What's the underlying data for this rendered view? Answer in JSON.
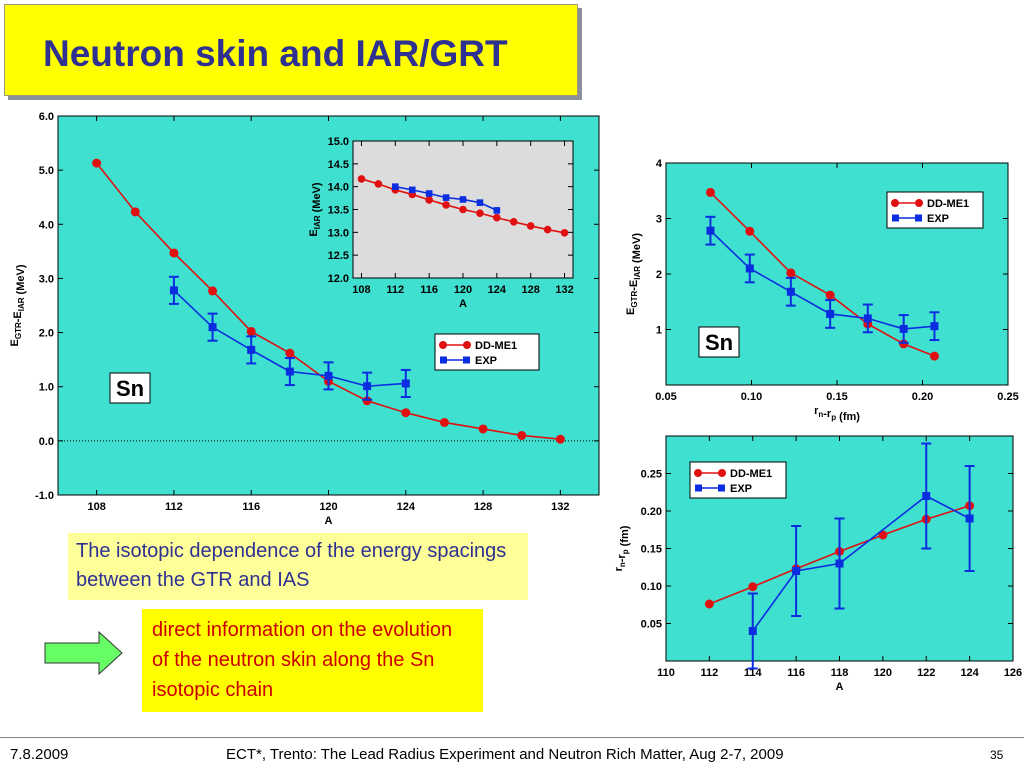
{
  "slide": {
    "title": "Neutron skin and IAR/GRT",
    "note_isotopic": "The isotopic dependence of the energy spacings between the GTR and IAS",
    "note_direct": "direct information on the evolution of the neutron skin along the Sn isotopic chain",
    "footer_date": "7.8.2009",
    "footer_conference": "ECT*, Trento: The Lead Radius Experiment and Neutron Rich Matter, Aug 2-7, 2009",
    "page_number": "35"
  },
  "colors": {
    "plot_bg": "#40e0d0",
    "inset_bg": "#dcdcdc",
    "model": "#e01010",
    "exp": "#0a2de0",
    "title_bg": "#ffff00",
    "title_text": "#2e3192"
  },
  "chart_data": [
    {
      "id": "main",
      "type": "line",
      "xlabel": "A",
      "ylabel": "E_GTR-E_IAR (MeV)",
      "xlim": [
        106,
        134
      ],
      "ylim": [
        -1.0,
        6.0
      ],
      "xticks": [
        108,
        112,
        116,
        120,
        124,
        128,
        132
      ],
      "yticks": [
        "-1.0",
        "0.0",
        "1.0",
        "2.0",
        "3.0",
        "4.0",
        "5.0",
        "6.0"
      ],
      "annotation": "Sn",
      "legend_position": "center-right",
      "zero_line": true,
      "series": [
        {
          "name": "DD-ME1",
          "x": [
            108,
            110,
            112,
            114,
            116,
            118,
            120,
            122,
            124,
            126,
            128,
            130,
            132
          ],
          "y": [
            5.13,
            4.23,
            3.47,
            2.77,
            2.02,
            1.62,
            1.1,
            0.74,
            0.52,
            0.34,
            0.22,
            0.1,
            0.03
          ]
        },
        {
          "name": "EXP",
          "x": [
            112,
            114,
            116,
            118,
            120,
            122,
            124
          ],
          "y": [
            2.78,
            2.1,
            1.68,
            1.28,
            1.2,
            1.01,
            1.06
          ],
          "err": [
            0.25,
            0.25,
            0.25,
            0.25,
            0.25,
            0.25,
            0.25
          ]
        }
      ]
    },
    {
      "id": "inset",
      "type": "line",
      "xlabel": "A",
      "ylabel": "E_IAR (MeV)",
      "xlim": [
        107,
        133
      ],
      "ylim": [
        12.0,
        15.0
      ],
      "xticks": [
        108,
        112,
        116,
        120,
        124,
        128,
        132
      ],
      "yticks": [
        "12.0",
        "12.5",
        "13.0",
        "13.5",
        "14.0",
        "14.5",
        "15.0"
      ],
      "series": [
        {
          "name": "DD-ME1",
          "x": [
            108,
            110,
            112,
            114,
            116,
            118,
            120,
            122,
            124,
            126,
            128,
            130,
            132
          ],
          "y": [
            14.17,
            14.06,
            13.93,
            13.83,
            13.71,
            13.6,
            13.5,
            13.42,
            13.32,
            13.23,
            13.14,
            13.06,
            12.99
          ]
        },
        {
          "name": "EXP",
          "x": [
            112,
            114,
            116,
            118,
            120,
            122,
            124
          ],
          "y": [
            14.0,
            13.93,
            13.85,
            13.76,
            13.72,
            13.65,
            13.48
          ]
        }
      ]
    },
    {
      "id": "right_top",
      "type": "line",
      "xlabel": "r_n-r_p (fm)",
      "ylabel": "E_GTR-E_IAR (MeV)",
      "xlim": [
        0.05,
        0.25
      ],
      "ylim": [
        0.0,
        4.0
      ],
      "xticks": [
        "0.05",
        "0.10",
        "0.15",
        "0.20",
        "0.25"
      ],
      "yticks": [
        "1",
        "2",
        "3",
        "4"
      ],
      "annotation": "Sn",
      "legend_position": "top-right",
      "series": [
        {
          "name": "DD-ME1",
          "x": [
            0.076,
            0.099,
            0.123,
            0.146,
            0.168,
            0.189,
            0.207
          ],
          "y": [
            3.47,
            2.77,
            2.02,
            1.62,
            1.1,
            0.74,
            0.52
          ]
        },
        {
          "name": "EXP",
          "x": [
            0.076,
            0.099,
            0.123,
            0.146,
            0.168,
            0.189,
            0.207
          ],
          "y": [
            2.78,
            2.1,
            1.68,
            1.28,
            1.2,
            1.01,
            1.06
          ],
          "err": [
            0.25,
            0.25,
            0.25,
            0.25,
            0.25,
            0.25,
            0.25
          ]
        }
      ]
    },
    {
      "id": "right_bottom",
      "type": "line",
      "xlabel": "A",
      "ylabel": "r_n-r_p (fm)",
      "xlim": [
        110,
        126
      ],
      "ylim": [
        0.0,
        0.3
      ],
      "xticks": [
        110,
        112,
        114,
        116,
        118,
        120,
        122,
        124,
        126
      ],
      "yticks": [
        "0.05",
        "0.10",
        "0.15",
        "0.20",
        "0.25"
      ],
      "legend_position": "top-left",
      "series": [
        {
          "name": "DD-ME1",
          "x": [
            112,
            114,
            116,
            118,
            120,
            122,
            124
          ],
          "y": [
            0.076,
            0.099,
            0.123,
            0.146,
            0.168,
            0.189,
            0.207
          ]
        },
        {
          "name": "EXP",
          "x": [
            114,
            116,
            118,
            120,
            122,
            124
          ],
          "y": [
            0.04,
            0.12,
            0.13,
            null,
            0.22,
            0.19
          ],
          "err": [
            0.05,
            0.06,
            0.06,
            null,
            0.07,
            0.07
          ]
        }
      ]
    }
  ]
}
